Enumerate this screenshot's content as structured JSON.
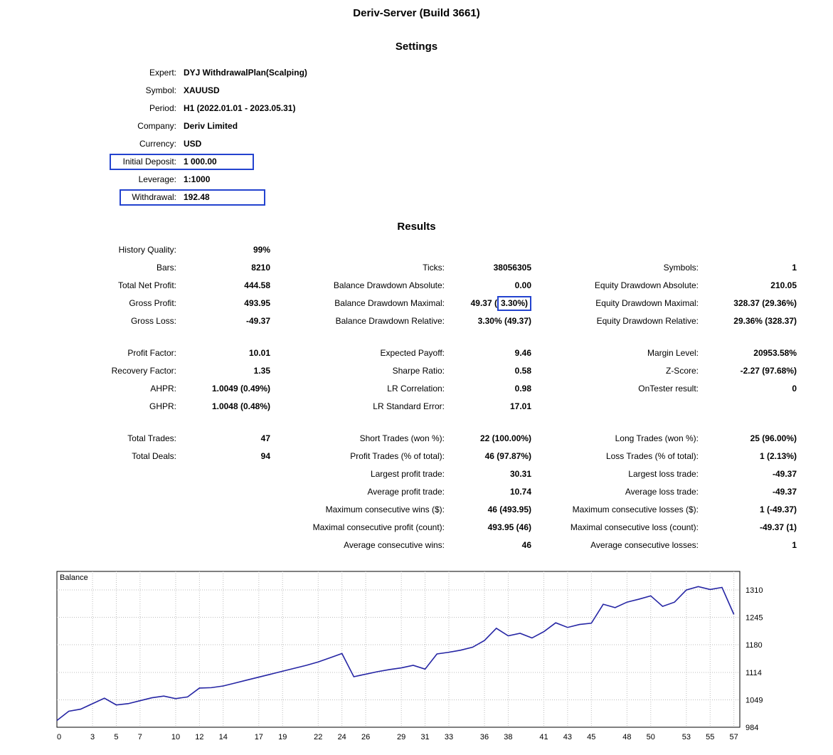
{
  "title": "Deriv-Server (Build 3661)",
  "colors": {
    "highlight_blue": "#2343cf",
    "balance_line": "#2525a4"
  },
  "settings": {
    "heading": "Settings",
    "rows": [
      {
        "label": "Expert:",
        "value": "DYJ WithdrawalPlan(Scalping)"
      },
      {
        "label": "Symbol:",
        "value": "XAUUSD"
      },
      {
        "label": "Period:",
        "value": "H1 (2022.01.01 - 2023.05.31)"
      },
      {
        "label": "Company:",
        "value": "Deriv Limited"
      },
      {
        "label": "Currency:",
        "value": "USD"
      },
      {
        "label": "Initial Deposit:",
        "value": "1 000.00",
        "boxed": true
      },
      {
        "label": "Leverage:",
        "value": "1:1000"
      },
      {
        "label": "Withdrawal:",
        "value": "192.48",
        "boxed": true
      }
    ]
  },
  "results": {
    "heading": "Results",
    "col1": [
      {
        "label": "History Quality:",
        "value": "99%"
      },
      {
        "label": "Bars:",
        "value": "8210"
      },
      {
        "label": "Total Net Profit:",
        "value": "444.58"
      },
      {
        "label": "Gross Profit:",
        "value": "493.95"
      },
      {
        "label": "Gross Loss:",
        "value": "-49.37"
      },
      {
        "label": "Profit Factor:",
        "value": "10.01"
      },
      {
        "label": "Recovery Factor:",
        "value": "1.35"
      },
      {
        "label": "AHPR:",
        "value": "1.0049 (0.49%)"
      },
      {
        "label": "GHPR:",
        "value": "1.0048 (0.48%)"
      },
      {
        "label": "Total Trades:",
        "value": "47"
      },
      {
        "label": "Total Deals:",
        "value": "94"
      }
    ],
    "col2": [
      {
        "label": "Ticks:",
        "value": "38056305"
      },
      {
        "label": "Balance Drawdown Absolute:",
        "value": "0.00"
      },
      {
        "label": "Balance Drawdown Maximal:",
        "value_pre": "49.37 (",
        "value_boxed": "3.30%)"
      },
      {
        "label": "Balance Drawdown Relative:",
        "value": "3.30% (49.37)"
      },
      {
        "label": "Expected Payoff:",
        "value": "9.46"
      },
      {
        "label": "Sharpe Ratio:",
        "value": "0.58"
      },
      {
        "label": "LR Correlation:",
        "value": "0.98"
      },
      {
        "label": "LR Standard Error:",
        "value": "17.01"
      },
      {
        "label": "Short Trades (won %):",
        "value": "22 (100.00%)"
      },
      {
        "label": "Profit Trades (% of total):",
        "value": "46 (97.87%)"
      },
      {
        "label": "Largest profit trade:",
        "value": "30.31"
      },
      {
        "label": "Average profit trade:",
        "value": "10.74"
      },
      {
        "label": "Maximum consecutive wins ($):",
        "value": "46 (493.95)"
      },
      {
        "label": "Maximal consecutive profit (count):",
        "value": "493.95 (46)"
      },
      {
        "label": "Average consecutive wins:",
        "value": "46"
      }
    ],
    "col3": [
      {
        "label": "Symbols:",
        "value": "1"
      },
      {
        "label": "Equity Drawdown Absolute:",
        "value": "210.05"
      },
      {
        "label": "Equity Drawdown Maximal:",
        "value": "328.37 (29.36%)"
      },
      {
        "label": "Equity Drawdown Relative:",
        "value": "29.36% (328.37)"
      },
      {
        "label": "Margin Level:",
        "value": "20953.58%"
      },
      {
        "label": "Z-Score:",
        "value": "-2.27 (97.68%)"
      },
      {
        "label": "OnTester result:",
        "value": "0"
      },
      {
        "label": "Long Trades (won %):",
        "value": "25 (96.00%)"
      },
      {
        "label": "Loss Trades (% of total):",
        "value": "1 (2.13%)"
      },
      {
        "label": "Largest loss trade:",
        "value": "-49.37"
      },
      {
        "label": "Average loss trade:",
        "value": "-49.37"
      },
      {
        "label": "Maximum consecutive losses ($):",
        "value": "1 (-49.37)"
      },
      {
        "label": "Maximal consecutive loss (count):",
        "value": "-49.37 (1)"
      },
      {
        "label": "Average consecutive losses:",
        "value": "1"
      }
    ]
  },
  "chart_data": {
    "type": "line",
    "series_label": "Balance",
    "legend_position": "top-left-inside",
    "grid": "dotted",
    "xlim": [
      0,
      57.5
    ],
    "ylim": [
      984,
      1354
    ],
    "xticks": [
      0,
      3,
      5,
      7,
      10,
      12,
      14,
      17,
      19,
      22,
      24,
      26,
      29,
      31,
      33,
      36,
      38,
      41,
      43,
      45,
      48,
      50,
      53,
      55,
      57
    ],
    "yticks": [
      984,
      1049,
      1114,
      1180,
      1245,
      1310
    ],
    "x": [
      0,
      1,
      2,
      3,
      4,
      5,
      6,
      7,
      8,
      9,
      10,
      11,
      12,
      13,
      14,
      15,
      16,
      17,
      18,
      19,
      20,
      21,
      22,
      23,
      24,
      25,
      26,
      27,
      28,
      29,
      30,
      31,
      32,
      33,
      34,
      35,
      36,
      37,
      38,
      39,
      40,
      41,
      42,
      43,
      44,
      45,
      46,
      47,
      48,
      49,
      50,
      51,
      52,
      53,
      54,
      55,
      56,
      57
    ],
    "balance": [
      1000,
      1022,
      1027,
      1040,
      1053,
      1037,
      1040,
      1047,
      1054,
      1058,
      1052,
      1056,
      1077,
      1078,
      1082,
      1089,
      1096,
      1103,
      1110,
      1117,
      1124,
      1131,
      1139,
      1149,
      1159,
      1104,
      1110,
      1116,
      1121,
      1125,
      1131,
      1122,
      1158,
      1162,
      1167,
      1174,
      1190,
      1219,
      1201,
      1207,
      1196,
      1211,
      1232,
      1221,
      1228,
      1231,
      1276,
      1268,
      1281,
      1288,
      1296,
      1271,
      1281,
      1310,
      1318,
      1311,
      1316,
      1252
    ],
    "line_color": "#2525a4"
  }
}
